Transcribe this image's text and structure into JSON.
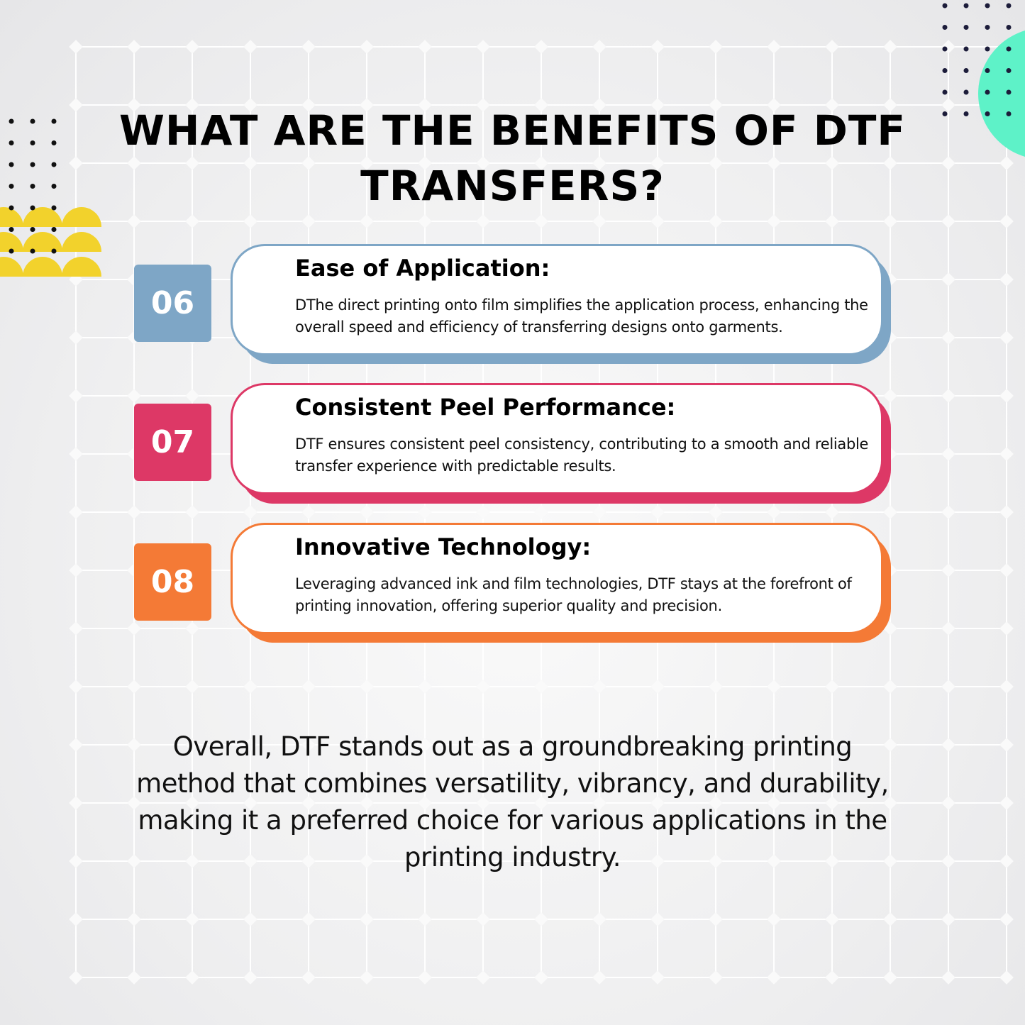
{
  "title": "WHAT ARE THE BENEFITS OF DTF TRANSFERS?",
  "benefits": [
    {
      "number": "06",
      "heading": "Ease of Application:",
      "text": "DThe direct printing onto film simplifies the application process, enhancing the overall speed and efficiency of transferring designs onto garments.",
      "color": "#7ea6c6"
    },
    {
      "number": "07",
      "heading": "Consistent Peel Performance:",
      "text": "DTF ensures consistent peel consistency, contributing to a smooth and reliable transfer experience with predictable results.",
      "color": "#dd3866"
    },
    {
      "number": "08",
      "heading": "Innovative Technology:",
      "text": "Leveraging advanced ink and film technologies, DTF stays at the forefront of printing innovation, offering superior quality and precision.",
      "color": "#f47a36"
    }
  ],
  "summary": "Overall, DTF stands out as a groundbreaking printing method that combines versatility, vibrancy, and durability, making it a preferred choice for various applications in the printing industry.",
  "colors": {
    "accent_yellow": "#f2d22c",
    "accent_teal": "#5ef2c8",
    "dots": "#111111"
  }
}
